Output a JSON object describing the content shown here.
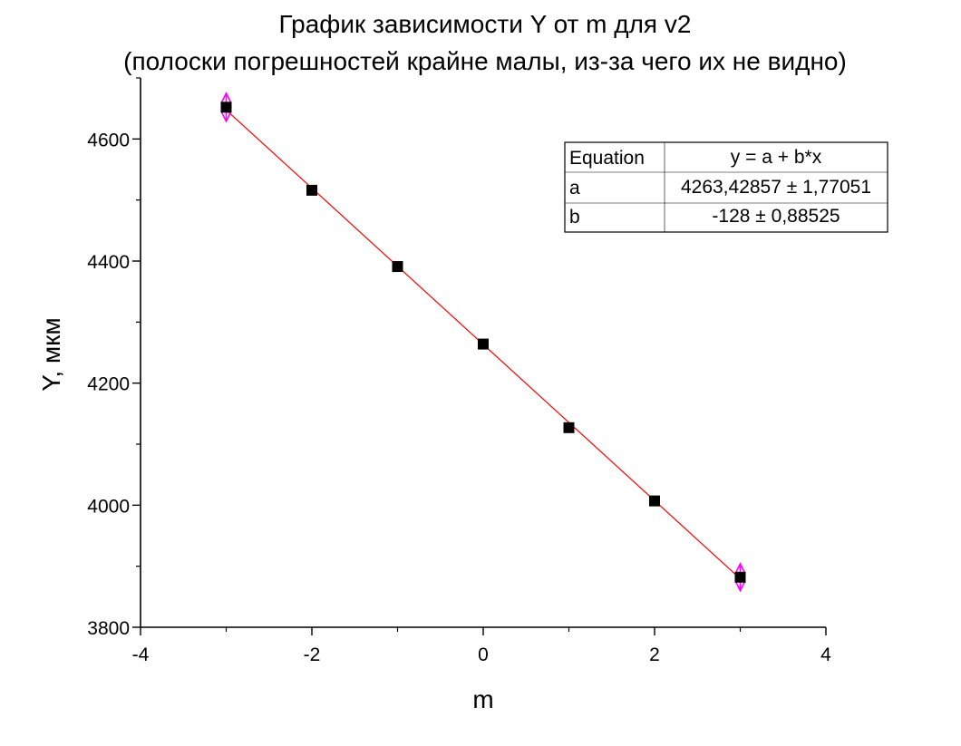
{
  "chart_data": {
    "type": "scatter",
    "title": "График зависимости Y от m для v2",
    "subtitle": "(полоски погрешностей крайне малы, из-за чего их не видно)",
    "xlabel": "m",
    "ylabel": "Y, мкм",
    "xlim": [
      -4,
      4
    ],
    "ylim": [
      3800,
      4700
    ],
    "x_ticks": [
      -4,
      -2,
      0,
      2,
      4
    ],
    "y_ticks": [
      3800,
      4000,
      4200,
      4400,
      4600
    ],
    "grid": false,
    "series": [
      {
        "x": [
          -3,
          -2,
          -1,
          0,
          1,
          2,
          3
        ],
        "y": [
          4652,
          4516,
          4391,
          4264,
          4127,
          4007,
          3882
        ],
        "marker": "square",
        "color": "#000000"
      }
    ],
    "error_bars": {
      "color": "#ff00ff",
      "points": [
        {
          "x": -3,
          "y": 4652,
          "err": 23
        },
        {
          "x": 3,
          "y": 3882,
          "err": 22
        }
      ]
    },
    "fit_line": {
      "intercept": 4263.42857,
      "slope": -128,
      "x_range": [
        -3,
        3
      ],
      "color": "#ff0000"
    },
    "fit_table": {
      "header": [
        "Equation",
        "y = a + b*x"
      ],
      "rows": [
        [
          "a",
          "4263,42857 ± 1,77051"
        ],
        [
          "b",
          "-128 ± 0,88525"
        ]
      ]
    }
  }
}
